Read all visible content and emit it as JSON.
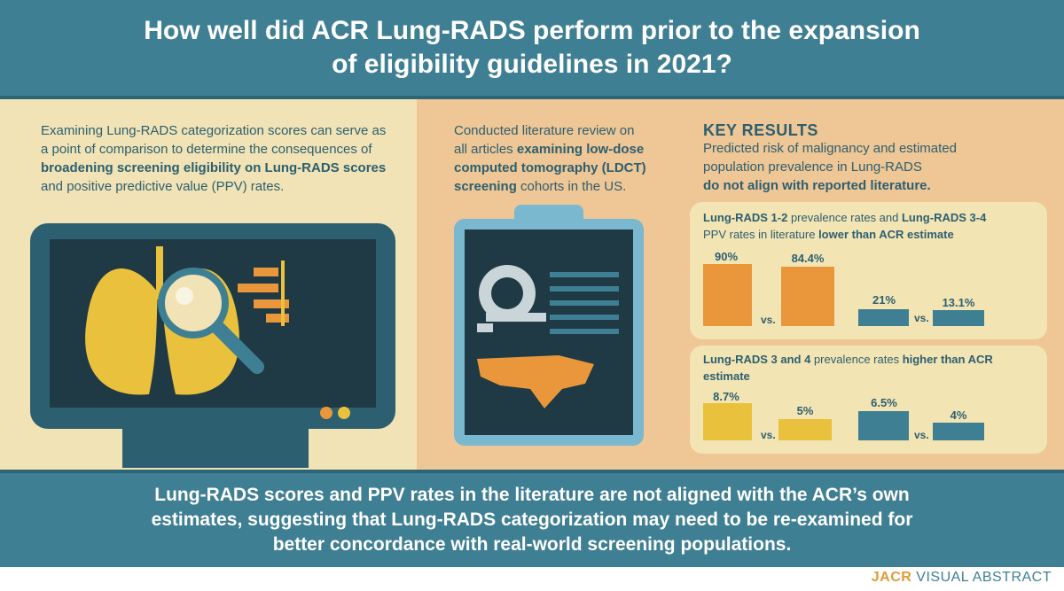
{
  "header": {
    "title": "How well did ACR Lung-RADS perform prior to the expansion of eligibility guidelines in 2021?"
  },
  "left": {
    "text_1": "Examining Lung-RADS categorization scores can serve as a point of comparison to determine the consequences of ",
    "text_bold": "broadening screening eligibility on Lung-RADS scores",
    "text_2": " and positive predictive value (PPV) rates."
  },
  "middle": {
    "text_1": "Conducted literature review on all articles ",
    "text_bold": "examining low-dose computed tomography (LDCT) screening",
    "text_2": " cohorts in the US."
  },
  "key_results": {
    "title": "KEY RESULTS",
    "text_1": "Predicted risk of malignancy and estimated population prevalence in Lung-RADS",
    "text_bold": "do not align with reported literature."
  },
  "card_1": {
    "title_a": "Lung-RADS 1-2",
    "title_b": " prevalence rates and ",
    "title_c": "Lung-RADS 3-4",
    "title_d": "PPV rates in literature ",
    "title_e": "lower than ACR estimate",
    "bars": [
      {
        "label": "90%",
        "value": 90
      },
      {
        "label": "84.4%",
        "value": 84.4
      },
      {
        "label": "21%",
        "value": 21
      },
      {
        "label": "13.1%",
        "value": 13.1
      }
    ],
    "vs": "vs."
  },
  "card_2": {
    "title_a": "Lung-RADS 3 and 4",
    "title_b": " prevalence rates ",
    "title_c": "higher than ACR estimate",
    "bars": [
      {
        "label": "8.7%",
        "value": 8.7
      },
      {
        "label": "5%",
        "value": 5
      },
      {
        "label": "6.5%",
        "value": 6.5
      },
      {
        "label": "4%",
        "value": 4
      }
    ],
    "vs": "vs."
  },
  "footer": {
    "text": "Lung-RADS scores and PPV rates in the literature are not aligned with the ACR’s own estimates, suggesting that Lung-RADS categorization may need to be re-examined for better concordance with real-world screening populations."
  },
  "brand": {
    "part_a": "JACR",
    "part_b": " VISUAL ABSTRACT"
  },
  "colors": {
    "teal": "#3f7f93",
    "dark_teal": "#2c5f70",
    "orange": "#e9973a",
    "yellow": "#e9c13c",
    "cream": "#f1e3b5",
    "peach": "#efc695"
  }
}
